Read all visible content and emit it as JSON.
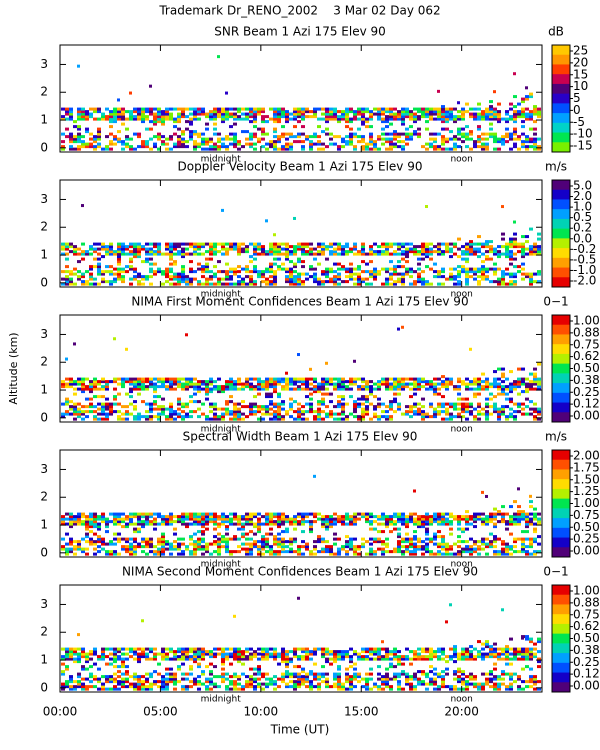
{
  "header": {
    "title": "Trademark Dr_RENO_2002    3 Mar 02 Day 062"
  },
  "chart_data": [
    {
      "type": "heatmap",
      "title": "SNR Beam 1 Azi 175 Elev 90",
      "unit": "dB",
      "ylim": [
        -0.15,
        3.7
      ],
      "yticks": [
        0,
        1,
        2,
        3
      ],
      "annotations": [
        {
          "text": "midnight",
          "x": 8
        },
        {
          "text": "noon",
          "x": 20
        }
      ],
      "colorbar": {
        "colors": [
          "#ffc800",
          "#ff9600",
          "#ff3c00",
          "#c80050",
          "#500078",
          "#2800c8",
          "#0050ff",
          "#00a0ff",
          "#00d2c8",
          "#00e650",
          "#78f000"
        ],
        "ticks": [
          25,
          20,
          15,
          10,
          5,
          0,
          -5,
          -10,
          -15
        ]
      }
    },
    {
      "type": "heatmap",
      "title": "Doppler Velocity Beam 1 Azi 175 Elev 90",
      "unit": "m/s",
      "ylim": [
        -0.15,
        3.7
      ],
      "yticks": [
        0,
        1,
        2,
        3
      ],
      "annotations": [
        {
          "text": "midnight",
          "x": 8
        },
        {
          "text": "noon",
          "x": 20
        }
      ],
      "colorbar": {
        "colors": [
          "#500078",
          "#1400c8",
          "#0050ff",
          "#00a0ff",
          "#00d2b4",
          "#00e650",
          "#b4f000",
          "#ffdc00",
          "#ffa000",
          "#ff5000",
          "#e60000"
        ],
        "ticks": [
          {
            "value": 5,
            "label": "5.0"
          },
          {
            "value": 2,
            "label": "2.0"
          },
          {
            "value": 1,
            "label": "1.0"
          },
          0.5,
          0.2,
          {
            "value": 0,
            "label": "0.0"
          },
          -0.2,
          -0.5,
          {
            "value": -1,
            "label": "-1.0"
          },
          {
            "value": -2,
            "label": "-2.0"
          }
        ]
      }
    },
    {
      "type": "heatmap",
      "title": "NIMA First Moment Confidences Beam 1 Azi 175 Elev 90",
      "unit": "0−1",
      "ylim": [
        -0.15,
        3.7
      ],
      "yticks": [
        0,
        1,
        2,
        3
      ],
      "y_label": "Altitude (km)",
      "annotations": [
        {
          "text": "midnight",
          "x": 8
        },
        {
          "text": "noon",
          "x": 20
        }
      ],
      "colorbar": {
        "colors": [
          "#e60000",
          "#ff5000",
          "#ffa000",
          "#ffdc00",
          "#b4f000",
          "#00e650",
          "#00d2b4",
          "#00a0ff",
          "#0050ff",
          "#1400c8",
          "#500078"
        ],
        "ticks": [
          {
            "value": 1,
            "label": "1.00"
          },
          0.88,
          0.75,
          0.62,
          {
            "value": 0.5,
            "label": "0.50"
          },
          0.38,
          0.25,
          0.12,
          {
            "value": 0,
            "label": "0.00"
          }
        ]
      }
    },
    {
      "type": "heatmap",
      "title": "Spectral Width Beam 1 Azi 175 Elev 90",
      "unit": "m/s",
      "ylim": [
        -0.15,
        3.7
      ],
      "yticks": [
        0,
        1,
        2,
        3
      ],
      "annotations": [
        {
          "text": "midnight",
          "x": 8
        },
        {
          "text": "noon",
          "x": 20
        }
      ],
      "colorbar": {
        "colors": [
          "#e60000",
          "#ff5000",
          "#ffa000",
          "#ffdc00",
          "#b4f000",
          "#00e650",
          "#00d2b4",
          "#00a0ff",
          "#0050ff",
          "#1400c8",
          "#500078"
        ],
        "ticks": [
          {
            "value": 2,
            "label": "2.00"
          },
          1.75,
          {
            "value": 1.5,
            "label": "1.50"
          },
          1.25,
          {
            "value": 1,
            "label": "1.00"
          },
          0.75,
          {
            "value": 0.5,
            "label": "0.50"
          },
          0.25,
          {
            "value": 0,
            "label": "0.00"
          }
        ]
      }
    },
    {
      "type": "heatmap",
      "title": "NIMA Second Moment Confidences Beam 1 Azi 175 Elev 90",
      "unit": "0−1",
      "ylim": [
        -0.15,
        3.7
      ],
      "yticks": [
        0,
        1,
        2,
        3
      ],
      "xlim": [
        0,
        24
      ],
      "xticks": [
        {
          "value": 0,
          "label": "00:00"
        },
        {
          "value": 5,
          "label": "05:00"
        },
        {
          "value": 10,
          "label": "10:00"
        },
        {
          "value": 15,
          "label": "15:00"
        },
        {
          "value": 20,
          "label": "20:00"
        }
      ],
      "x_label": "Time (UT)",
      "annotations": [
        {
          "text": "midnight",
          "x": 8
        },
        {
          "text": "noon",
          "x": 20
        }
      ],
      "colorbar": {
        "colors": [
          "#e60000",
          "#ff5000",
          "#ffa000",
          "#ffdc00",
          "#b4f000",
          "#00e650",
          "#00d2b4",
          "#00a0ff",
          "#0050ff",
          "#1400c8",
          "#500078"
        ],
        "ticks": [
          {
            "value": 1,
            "label": "1.00"
          },
          0.88,
          0.75,
          0.62,
          {
            "value": 0.5,
            "label": "0.50"
          },
          0.38,
          0.25,
          0.12,
          {
            "value": 0,
            "label": "0.00"
          }
        ]
      }
    }
  ]
}
